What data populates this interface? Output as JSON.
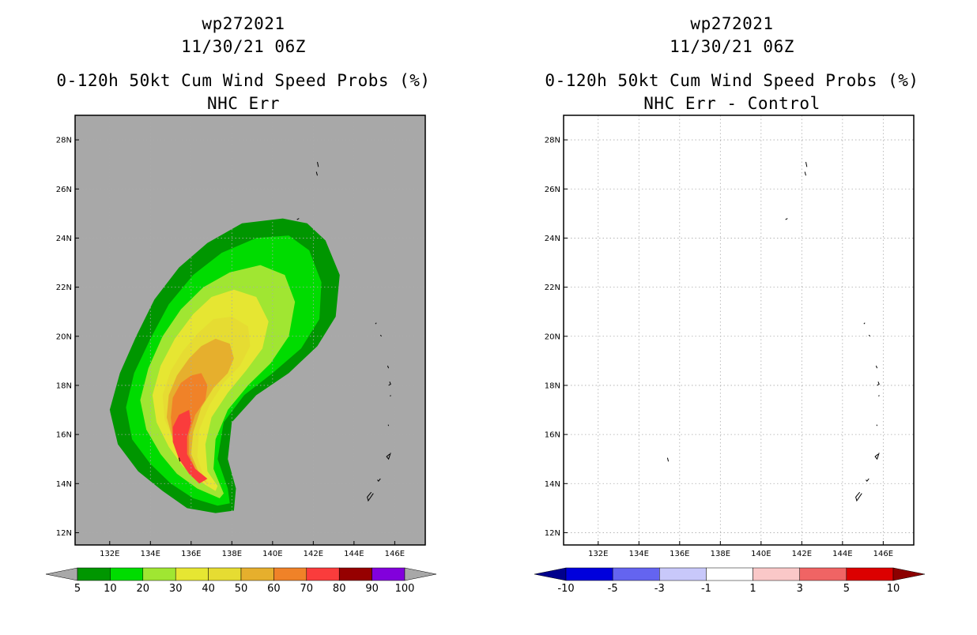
{
  "chart_data": [
    {
      "type": "contour",
      "title": [
        "wp272021",
        "11/30/21 06Z",
        "0-120h 50kt Cum Wind Speed Probs (%)",
        "NHC Err"
      ],
      "x_axis": {
        "range": [
          130.3,
          147.5
        ],
        "ticks": [
          132,
          134,
          136,
          138,
          140,
          142,
          144,
          146
        ],
        "tick_labels": [
          "132E",
          "134E",
          "136E",
          "138E",
          "140E",
          "142E",
          "144E",
          "146E"
        ]
      },
      "y_axis": {
        "range": [
          11.5,
          29
        ],
        "ticks": [
          12,
          14,
          16,
          18,
          20,
          22,
          24,
          26,
          28
        ],
        "tick_labels": [
          "12N",
          "14N",
          "16N",
          "18N",
          "20N",
          "22N",
          "24N",
          "26N",
          "28N"
        ]
      },
      "background": "#a8a8a8",
      "levels": [
        {
          "min": 5,
          "color": "#009600",
          "polygon": [
            [
              137.2,
              12.8
            ],
            [
              135.8,
              13.0
            ],
            [
              134.6,
              13.7
            ],
            [
              133.4,
              14.5
            ],
            [
              132.4,
              15.6
            ],
            [
              132.0,
              17.0
            ],
            [
              132.5,
              18.5
            ],
            [
              133.3,
              20.0
            ],
            [
              134.2,
              21.5
            ],
            [
              135.4,
              22.8
            ],
            [
              136.8,
              23.8
            ],
            [
              138.5,
              24.6
            ],
            [
              140.5,
              24.8
            ],
            [
              141.7,
              24.6
            ],
            [
              142.6,
              23.9
            ],
            [
              143.3,
              22.5
            ],
            [
              143.1,
              20.8
            ],
            [
              142.2,
              19.6
            ],
            [
              140.8,
              18.5
            ],
            [
              139.2,
              17.6
            ],
            [
              138.0,
              16.5
            ],
            [
              137.8,
              15.0
            ],
            [
              138.2,
              13.8
            ],
            [
              138.1,
              12.9
            ]
          ]
        },
        {
          "min": 10,
          "color": "#00dc00",
          "polygon": [
            [
              137.3,
              13.1
            ],
            [
              136.1,
              13.4
            ],
            [
              135.0,
              14.0
            ],
            [
              134.0,
              14.8
            ],
            [
              133.1,
              15.8
            ],
            [
              132.8,
              17.1
            ],
            [
              133.2,
              18.5
            ],
            [
              134.0,
              19.9
            ],
            [
              134.9,
              21.3
            ],
            [
              136.1,
              22.5
            ],
            [
              137.5,
              23.4
            ],
            [
              139.2,
              24.0
            ],
            [
              140.8,
              24.1
            ],
            [
              141.8,
              23.5
            ],
            [
              142.4,
              22.2
            ],
            [
              142.3,
              20.7
            ],
            [
              141.4,
              19.5
            ],
            [
              140.0,
              18.5
            ],
            [
              138.6,
              17.6
            ],
            [
              137.6,
              16.5
            ],
            [
              137.3,
              15.0
            ],
            [
              137.8,
              13.8
            ],
            [
              137.9,
              13.2
            ]
          ]
        },
        {
          "min": 20,
          "color": "#a0e632",
          "polygon": [
            [
              137.4,
              13.4
            ],
            [
              136.3,
              13.8
            ],
            [
              135.3,
              14.4
            ],
            [
              134.5,
              15.2
            ],
            [
              133.8,
              16.2
            ],
            [
              133.5,
              17.4
            ],
            [
              133.9,
              18.7
            ],
            [
              134.6,
              20.0
            ],
            [
              135.5,
              21.1
            ],
            [
              136.6,
              22.0
            ],
            [
              137.9,
              22.6
            ],
            [
              139.4,
              22.9
            ],
            [
              140.6,
              22.5
            ],
            [
              141.1,
              21.4
            ],
            [
              140.8,
              20.0
            ],
            [
              139.9,
              18.9
            ],
            [
              138.8,
              18.0
            ],
            [
              137.8,
              17.0
            ],
            [
              137.2,
              15.8
            ],
            [
              137.1,
              14.6
            ],
            [
              137.6,
              13.6
            ]
          ]
        },
        {
          "min": 30,
          "color": "#e6e632",
          "polygon": [
            [
              137.2,
              13.7
            ],
            [
              136.4,
              14.1
            ],
            [
              135.6,
              14.7
            ],
            [
              134.9,
              15.5
            ],
            [
              134.3,
              16.5
            ],
            [
              134.1,
              17.6
            ],
            [
              134.5,
              18.8
            ],
            [
              135.2,
              19.9
            ],
            [
              136.1,
              20.9
            ],
            [
              137.0,
              21.6
            ],
            [
              138.1,
              21.9
            ],
            [
              139.2,
              21.6
            ],
            [
              139.8,
              20.6
            ],
            [
              139.5,
              19.5
            ],
            [
              138.7,
              18.6
            ],
            [
              137.8,
              17.7
            ],
            [
              137.0,
              16.7
            ],
            [
              136.7,
              15.6
            ],
            [
              136.8,
              14.5
            ],
            [
              137.3,
              13.9
            ]
          ]
        },
        {
          "min": 40,
          "color": "#e6dc32",
          "polygon": [
            [
              137.0,
              13.9
            ],
            [
              136.4,
              14.3
            ],
            [
              135.8,
              14.9
            ],
            [
              135.2,
              15.7
            ],
            [
              134.7,
              16.6
            ],
            [
              134.6,
              17.6
            ],
            [
              135.0,
              18.6
            ],
            [
              135.6,
              19.4
            ],
            [
              136.3,
              20.1
            ],
            [
              137.1,
              20.7
            ],
            [
              138.0,
              20.8
            ],
            [
              138.8,
              20.4
            ],
            [
              138.9,
              19.6
            ],
            [
              138.4,
              18.8
            ],
            [
              137.6,
              18.1
            ],
            [
              136.9,
              17.2
            ],
            [
              136.4,
              16.2
            ],
            [
              136.3,
              15.1
            ],
            [
              136.6,
              14.3
            ]
          ]
        },
        {
          "min": 50,
          "color": "#e6af2d",
          "polygon": [
            [
              136.8,
              14.0
            ],
            [
              136.2,
              14.4
            ],
            [
              135.6,
              15.0
            ],
            [
              135.1,
              15.8
            ],
            [
              134.8,
              16.7
            ],
            [
              134.9,
              17.6
            ],
            [
              135.3,
              18.4
            ],
            [
              135.9,
              19.1
            ],
            [
              136.5,
              19.6
            ],
            [
              137.2,
              19.9
            ],
            [
              137.9,
              19.7
            ],
            [
              138.1,
              19.1
            ],
            [
              137.8,
              18.5
            ],
            [
              137.1,
              17.9
            ],
            [
              136.5,
              17.1
            ],
            [
              136.1,
              16.1
            ],
            [
              136.0,
              15.2
            ],
            [
              136.4,
              14.4
            ]
          ]
        },
        {
          "min": 60,
          "color": "#f08228",
          "polygon": [
            [
              136.6,
              14.0
            ],
            [
              136.0,
              14.5
            ],
            [
              135.5,
              15.1
            ],
            [
              135.1,
              15.9
            ],
            [
              135.0,
              16.7
            ],
            [
              135.1,
              17.5
            ],
            [
              135.5,
              18.1
            ],
            [
              136.0,
              18.4
            ],
            [
              136.5,
              18.5
            ],
            [
              136.8,
              18.0
            ],
            [
              136.7,
              17.4
            ],
            [
              136.2,
              16.8
            ],
            [
              135.9,
              16.0
            ],
            [
              135.9,
              15.2
            ],
            [
              136.3,
              14.4
            ]
          ]
        },
        {
          "min": 70,
          "color": "#fa3c3c",
          "polygon": [
            [
              136.4,
              14.0
            ],
            [
              135.9,
              14.4
            ],
            [
              135.4,
              15.0
            ],
            [
              135.1,
              15.7
            ],
            [
              135.1,
              16.3
            ],
            [
              135.4,
              16.8
            ],
            [
              135.9,
              17.0
            ],
            [
              136.0,
              16.5
            ],
            [
              135.8,
              15.9
            ],
            [
              135.8,
              15.2
            ],
            [
              136.2,
              14.6
            ],
            [
              136.8,
              14.2
            ]
          ]
        }
      ],
      "colorbar": {
        "labels": [
          "5",
          "10",
          "20",
          "30",
          "40",
          "50",
          "60",
          "70",
          "80",
          "90",
          "100"
        ],
        "colors": [
          "#009600",
          "#00dc00",
          "#a0e632",
          "#e6e632",
          "#e6dc32",
          "#e6af2d",
          "#f08228",
          "#fa3c3c",
          "#960000",
          "#8200dc"
        ],
        "low_extend": "#a8a8a8",
        "high_extend": "#a8a8a8"
      }
    },
    {
      "type": "contour",
      "title": [
        "wp272021",
        "11/30/21 06Z",
        "0-120h 50kt Cum Wind Speed Probs (%)",
        "NHC Err - Control"
      ],
      "x_axis": {
        "range": [
          130.3,
          147.5
        ],
        "ticks": [
          132,
          134,
          136,
          138,
          140,
          142,
          144,
          146
        ],
        "tick_labels": [
          "132E",
          "134E",
          "136E",
          "138E",
          "140E",
          "142E",
          "144E",
          "146E"
        ]
      },
      "y_axis": {
        "range": [
          11.5,
          29
        ],
        "ticks": [
          12,
          14,
          16,
          18,
          20,
          22,
          24,
          26,
          28
        ],
        "tick_labels": [
          "12N",
          "14N",
          "16N",
          "18N",
          "20N",
          "22N",
          "24N",
          "26N",
          "28N"
        ]
      },
      "background": "#ffffff",
      "grid": true,
      "levels": [],
      "colorbar": {
        "labels": [
          "-10",
          "-5",
          "-3",
          "-1",
          "1",
          "3",
          "5",
          "10"
        ],
        "colors": [
          "#0000dc",
          "#6464f0",
          "#c8c8fa",
          "#ffffff",
          "#fac8c8",
          "#f06464",
          "#dc0000"
        ],
        "low_extend": "#00008c",
        "high_extend": "#8c0000"
      }
    }
  ],
  "islands": [
    [
      [
        142.2,
        27.1
      ],
      [
        142.25,
        26.9
      ]
    ],
    [
      [
        142.15,
        26.7
      ],
      [
        142.2,
        26.55
      ]
    ],
    [
      [
        141.3,
        24.8
      ],
      [
        141.2,
        24.75
      ]
    ],
    [
      [
        145.1,
        20.55
      ],
      [
        145.05,
        20.5
      ]
    ],
    [
      [
        145.3,
        20.05
      ],
      [
        145.35,
        20.0
      ]
    ],
    [
      [
        145.65,
        18.8
      ],
      [
        145.7,
        18.7
      ]
    ],
    [
      [
        145.75,
        18.15
      ],
      [
        145.8,
        18.05
      ],
      [
        145.7,
        18.0
      ]
    ],
    [
      [
        145.8,
        17.6
      ],
      [
        145.78,
        17.55
      ]
    ],
    [
      [
        145.68,
        16.4
      ],
      [
        145.7,
        16.35
      ]
    ],
    [
      [
        145.8,
        15.25
      ],
      [
        145.7,
        15.0
      ],
      [
        145.6,
        15.1
      ],
      [
        145.75,
        15.2
      ]
    ],
    [
      [
        145.3,
        14.2
      ],
      [
        145.2,
        14.1
      ],
      [
        145.15,
        14.15
      ]
    ],
    [
      [
        144.95,
        13.6
      ],
      [
        144.7,
        13.3
      ],
      [
        144.65,
        13.45
      ],
      [
        144.85,
        13.65
      ]
    ],
    [
      [
        135.4,
        15.05
      ],
      [
        135.45,
        14.9
      ]
    ]
  ]
}
